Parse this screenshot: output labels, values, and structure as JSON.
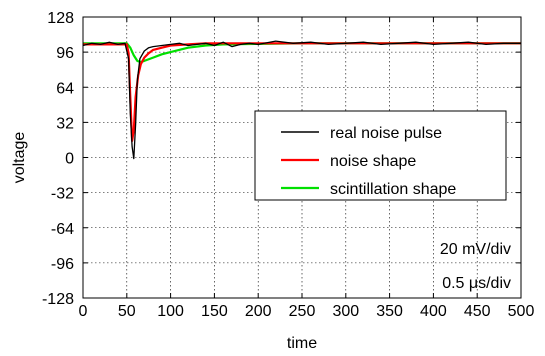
{
  "chart_data": {
    "type": "line",
    "xlabel": "time",
    "ylabel": "voltage",
    "xlim": [
      0,
      500
    ],
    "ylim": [
      -128,
      128
    ],
    "x_ticks": [
      0,
      50,
      100,
      150,
      200,
      250,
      300,
      350,
      400,
      450,
      500
    ],
    "y_ticks": [
      128,
      96,
      64,
      32,
      0,
      -32,
      -64,
      -96,
      -128
    ],
    "x_tick_labels": [
      "0",
      "50",
      "100",
      "150",
      "200",
      "250",
      "300",
      "350",
      "400",
      "450",
      "500"
    ],
    "y_tick_labels": [
      "128",
      "96",
      "64",
      "32",
      "0",
      "-32",
      "-64",
      "-96",
      "-128"
    ],
    "grid": true,
    "legend_position": "center-right",
    "annotations": [
      "20 mV/div",
      "0.5 μs/div"
    ],
    "series": [
      {
        "name": "real noise pulse",
        "color": "#000000",
        "x": [
          0,
          10,
          20,
          30,
          40,
          48,
          52,
          54,
          56,
          58,
          60,
          62,
          65,
          70,
          75,
          80,
          90,
          100,
          110,
          120,
          130,
          140,
          150,
          160,
          170,
          180,
          190,
          200,
          220,
          240,
          260,
          280,
          300,
          320,
          340,
          360,
          380,
          400,
          420,
          440,
          460,
          480,
          500
        ],
        "y": [
          102,
          104,
          103,
          105,
          103,
          104,
          90,
          40,
          10,
          -1,
          30,
          70,
          90,
          97,
          100,
          101,
          102,
          103,
          104,
          102,
          103,
          104,
          102,
          105,
          101,
          103,
          104,
          103,
          106,
          104,
          105,
          103,
          104,
          105,
          103,
          104,
          105,
          103,
          104,
          105,
          103,
          104,
          104
        ]
      },
      {
        "name": "noise shape",
        "color": "#ff0000",
        "x": [
          0,
          20,
          40,
          50,
          52,
          54,
          56,
          58,
          60,
          63,
          66,
          70,
          75,
          80,
          90,
          100,
          120,
          140,
          160,
          500
        ],
        "y": [
          103,
          103,
          103,
          103,
          95,
          55,
          15,
          25,
          55,
          75,
          85,
          91,
          95,
          98,
          100,
          102,
          103,
          104,
          104,
          104
        ]
      },
      {
        "name": "scintillation shape",
        "color": "#00e000",
        "x": [
          0,
          20,
          40,
          50,
          54,
          58,
          62,
          66,
          70,
          80,
          90,
          100,
          120,
          140,
          160,
          200,
          250,
          300,
          350,
          400,
          450,
          500
        ],
        "y": [
          104,
          104,
          104,
          104,
          100,
          93,
          88,
          87,
          88,
          91,
          94,
          96,
          100,
          102,
          103,
          103.5,
          104,
          104,
          104,
          104,
          104,
          104
        ]
      }
    ]
  }
}
